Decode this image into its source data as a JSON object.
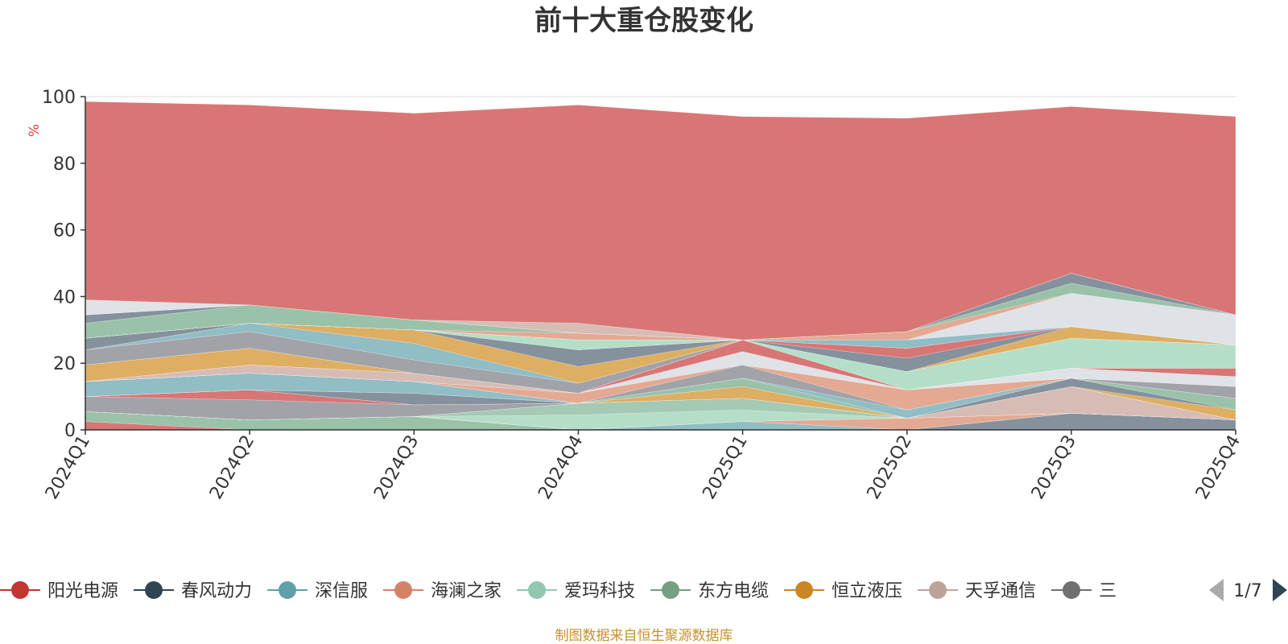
{
  "chart_data": {
    "type": "area",
    "stacked": true,
    "title": "前十大重仓股变化",
    "ylabel": "%",
    "ylim": [
      0,
      100
    ],
    "yticks": [
      0,
      20,
      40,
      60,
      80,
      100
    ],
    "grid": true,
    "categories": [
      "2024Q1",
      "2024Q2",
      "2024Q3",
      "2024Q4",
      "2025Q1",
      "2025Q2",
      "2025Q3",
      "2025Q4"
    ],
    "series": [
      {
        "color": "#d66f6f",
        "values": [
          2.5,
          0,
          0,
          0,
          0,
          0,
          0,
          0
        ]
      },
      {
        "color": "#95bfa4",
        "values": [
          3,
          3,
          4,
          0,
          0,
          0,
          0,
          0
        ]
      },
      {
        "color": "#7e8b98",
        "values": [
          0,
          0,
          0,
          0,
          0,
          0,
          5,
          3
        ]
      },
      {
        "color": "#8bb9c2",
        "values": [
          0,
          0,
          0,
          0,
          2.5,
          0,
          0,
          0
        ]
      },
      {
        "color": "#e3a48c",
        "values": [
          0,
          0,
          0,
          0,
          0,
          3.5,
          0,
          0
        ]
      },
      {
        "color": "#b1dcc5",
        "values": [
          0,
          0,
          0,
          4.5,
          3.5,
          0,
          0,
          0
        ]
      },
      {
        "color": "#9fc6b1",
        "values": [
          0,
          0,
          0,
          3.5,
          3.5,
          0,
          0,
          0
        ]
      },
      {
        "color": "#d5b8b1",
        "values": [
          0,
          0,
          0,
          0,
          0,
          0,
          8,
          0
        ]
      },
      {
        "color": "#9d9da4",
        "values": [
          4.5,
          6,
          3.5,
          0,
          0,
          0,
          0,
          0
        ]
      },
      {
        "color": "#d66f6f",
        "values": [
          0,
          3,
          0,
          0,
          0,
          0,
          0,
          0
        ]
      },
      {
        "color": "#dcaa5a",
        "values": [
          0,
          0,
          0,
          0,
          3.5,
          0,
          0,
          3
        ]
      },
      {
        "color": "#7e8b98",
        "values": [
          0,
          0,
          3.5,
          0,
          0,
          0,
          2.5,
          0
        ]
      },
      {
        "color": "#95bfa4",
        "values": [
          0,
          0,
          0,
          0,
          2.5,
          0,
          0,
          3.5
        ]
      },
      {
        "color": "#8bb9c2",
        "values": [
          4.5,
          5,
          3.5,
          0,
          0,
          2.5,
          0,
          0
        ]
      },
      {
        "color": "#9d9da4",
        "values": [
          0,
          0,
          0,
          0,
          4,
          0,
          0,
          3.5
        ]
      },
      {
        "color": "#e3a48c",
        "values": [
          0,
          0,
          0,
          3,
          0,
          6,
          0,
          0
        ]
      },
      {
        "color": "#dde0e6",
        "values": [
          0,
          0,
          0,
          0,
          4,
          0,
          3,
          3
        ]
      },
      {
        "color": "#d5b8b1",
        "values": [
          0,
          2.5,
          2.5,
          0,
          0,
          0,
          0,
          0
        ]
      },
      {
        "color": "#d66f6f",
        "values": [
          0,
          0,
          0,
          0,
          3.5,
          0,
          0,
          2.5
        ]
      },
      {
        "color": "#dcaa5a",
        "values": [
          5,
          5,
          0,
          0,
          0,
          0,
          0,
          0
        ]
      },
      {
        "color": "#b1dcc5",
        "values": [
          0,
          0,
          0,
          0,
          0,
          5.5,
          9,
          7
        ]
      },
      {
        "color": "#9d9da4",
        "values": [
          4.5,
          5,
          4,
          3,
          0,
          0,
          0,
          0
        ]
      },
      {
        "color": "#8bb9c2",
        "values": [
          0,
          2.5,
          5,
          0,
          0,
          0,
          0,
          0
        ]
      },
      {
        "color": "#dcaa5a",
        "values": [
          0,
          0,
          4,
          5,
          0,
          0,
          3.5,
          0
        ]
      },
      {
        "color": "#7e8b98",
        "values": [
          3.5,
          0,
          0,
          5,
          0,
          4,
          0,
          0
        ]
      },
      {
        "color": "#d66f6f",
        "values": [
          0,
          0,
          0,
          0,
          0,
          3,
          0,
          0
        ]
      },
      {
        "color": "#b1dcc5",
        "values": [
          0,
          0,
          0,
          3,
          0,
          0,
          0,
          0
        ]
      },
      {
        "color": "#8bb9c2",
        "values": [
          0,
          0,
          0,
          0,
          0,
          2.5,
          0,
          0
        ]
      },
      {
        "color": "#dde0e6",
        "values": [
          0,
          0,
          0,
          0,
          0,
          0,
          10,
          9
        ]
      },
      {
        "color": "#e3a48c",
        "values": [
          0,
          0,
          0,
          2,
          0,
          2.5,
          0,
          0
        ]
      },
      {
        "color": "#95bfa4",
        "values": [
          4.5,
          5.5,
          3,
          0,
          0,
          0,
          3,
          0
        ]
      },
      {
        "color": "#7e8b98",
        "values": [
          2.5,
          0,
          0,
          0,
          0,
          0,
          3,
          0
        ]
      },
      {
        "color": "#d5b8b1",
        "values": [
          0,
          0,
          0,
          3,
          0,
          0,
          0,
          0
        ]
      },
      {
        "color": "#dde0e6",
        "values": [
          4.5,
          0,
          0,
          0,
          0,
          0,
          0,
          0
        ]
      },
      {
        "color": "#d66f6f",
        "values": [
          59.5,
          60,
          62,
          65.5,
          67,
          64,
          50,
          59.5
        ]
      }
    ],
    "legend": {
      "position": "bottom",
      "items": [
        {
          "name": "阳光电源",
          "color": "#c23531"
        },
        {
          "name": "春风动力",
          "color": "#2f4554"
        },
        {
          "name": "深信服",
          "color": "#61a0a8"
        },
        {
          "name": "海澜之家",
          "color": "#d48265"
        },
        {
          "name": "爱玛科技",
          "color": "#91c7ae"
        },
        {
          "name": "东方电缆",
          "color": "#749f83"
        },
        {
          "name": "恒立液压",
          "color": "#ca8622"
        },
        {
          "name": "天孚通信",
          "color": "#bda29a"
        },
        {
          "name": "三",
          "color": "#6e7074"
        }
      ],
      "page": "1/7"
    },
    "source": "制图数据来自恒生聚源数据库"
  }
}
